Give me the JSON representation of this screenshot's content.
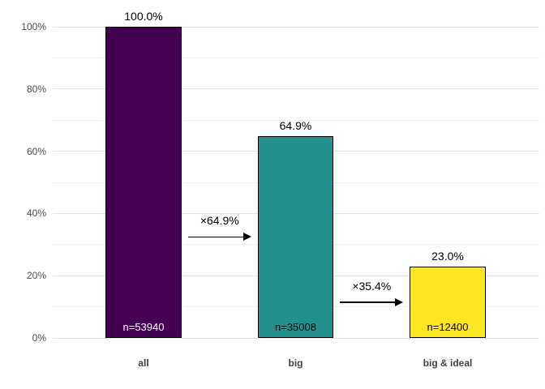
{
  "chart_data": {
    "type": "bar",
    "subtype": "funnel",
    "title": "",
    "xlabel": "",
    "ylabel": "",
    "categories": [
      "all",
      "big",
      "big & ideal"
    ],
    "values": [
      100.0,
      64.9,
      23.0
    ],
    "value_labels": [
      "100.0%",
      "64.9%",
      "23.0%"
    ],
    "counts": [
      53940,
      35008,
      12400
    ],
    "count_labels": [
      "n=53940",
      "n=35008",
      "n=12400"
    ],
    "bar_colors": [
      "#440154",
      "#21918c",
      "#fde725"
    ],
    "count_label_colors": [
      "#ffffff",
      "#000000",
      "#000000"
    ],
    "bar_border_color": "#000000",
    "arrows": [
      {
        "label": "×64.9%",
        "from_index": 0,
        "to_index": 1
      },
      {
        "label": "×35.4%",
        "from_index": 1,
        "to_index": 2
      }
    ],
    "ylim": [
      0,
      100
    ],
    "y_major_ticks": [
      0,
      20,
      40,
      60,
      80,
      100
    ],
    "y_tick_labels": [
      "0%",
      "20%",
      "40%",
      "60%",
      "80%",
      "100%"
    ],
    "y_minor_ticks": [
      10,
      30,
      50,
      70,
      90
    ],
    "grid": "horizontal-only",
    "legend": "none",
    "background": "#ffffff",
    "grid_major_color": "#e3e3e3",
    "grid_minor_color": "#f0f0f0",
    "axis_text_color": "#4d4d4d",
    "category_text_color": "#404040"
  }
}
